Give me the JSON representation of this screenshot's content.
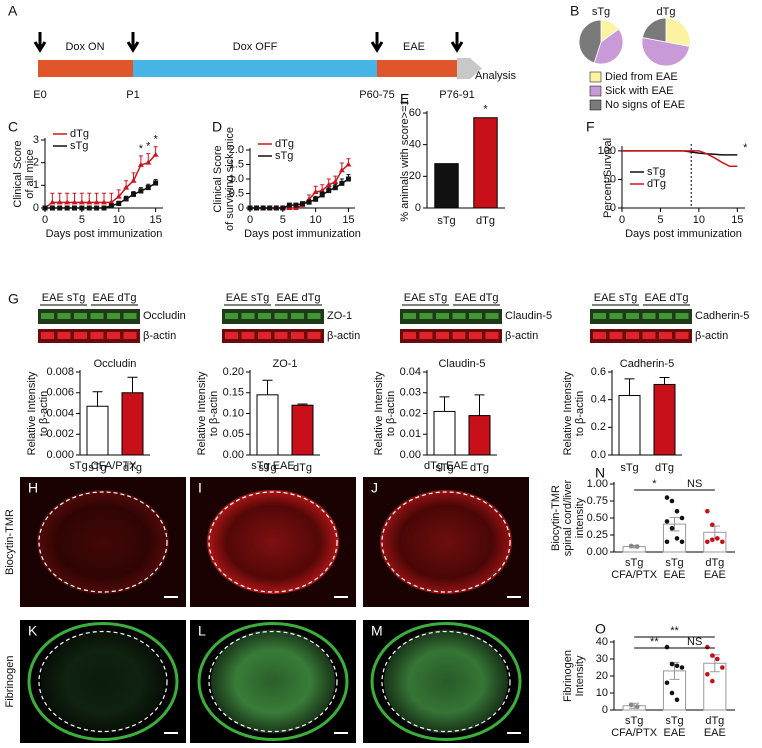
{
  "timeline": {
    "panel": "A",
    "phases": [
      "Dox ON",
      "Dox OFF",
      "EAE"
    ],
    "end": "Analysis",
    "timepoints": [
      "E0",
      "P1",
      "P60-75",
      "P76-91"
    ]
  },
  "chart_data": [
    {
      "type": "pie",
      "panel": "B",
      "categories": [
        "Died from EAE",
        "Sick with EAE",
        "No signs of EAE"
      ],
      "colors": [
        "#fbf3a2",
        "#c89ad8",
        "#7a7a7a"
      ],
      "pies": [
        {
          "name": "sTg",
          "values": [
            15,
            40,
            45
          ]
        },
        {
          "name": "dTg",
          "values": [
            28,
            50,
            22
          ]
        }
      ]
    },
    {
      "type": "line",
      "panel": "C",
      "x": [
        0,
        1,
        2,
        3,
        4,
        5,
        6,
        7,
        8,
        9,
        10,
        11,
        12,
        13,
        14,
        15
      ],
      "xlim": [
        0,
        16
      ],
      "xticks": [
        0,
        5,
        10,
        15
      ],
      "ylim": [
        0,
        3
      ],
      "yticks": [
        0,
        1,
        2,
        3
      ],
      "x_label": "Days post immunization",
      "y_label": [
        "Clinical Score",
        "of all mice"
      ],
      "legend": "upper left",
      "series": [
        {
          "name": "dTg",
          "color": "#d0141c",
          "marker": "triangle",
          "values": [
            0,
            0.25,
            0.25,
            0.25,
            0.25,
            0.25,
            0.25,
            0.25,
            0.25,
            0.25,
            0.5,
            0.9,
            1.2,
            1.9,
            2.0,
            2.35
          ],
          "errors": [
            0,
            0.4,
            0.4,
            0.4,
            0.4,
            0.4,
            0.4,
            0.4,
            0.4,
            0.4,
            0.3,
            0.3,
            0.35,
            0.4,
            0.4,
            0.35
          ]
        },
        {
          "name": "sTg",
          "color": "#111111",
          "marker": "square",
          "values": [
            0,
            0,
            0,
            0,
            0,
            0,
            0,
            0,
            0,
            0.1,
            0.2,
            0.4,
            0.6,
            0.75,
            0.9,
            1.1
          ],
          "errors": [
            0,
            0,
            0,
            0,
            0,
            0,
            0,
            0,
            0.05,
            0.08,
            0.1,
            0.12,
            0.12,
            0.15,
            0.15,
            0.15
          ]
        }
      ],
      "annotations": [
        {
          "x": 13,
          "text": "*"
        },
        {
          "x": 14,
          "text": "*"
        },
        {
          "x": 15,
          "text": "*"
        }
      ]
    },
    {
      "type": "line",
      "panel": "D",
      "x": [
        0,
        1,
        2,
        3,
        4,
        5,
        6,
        7,
        8,
        9,
        10,
        11,
        12,
        13,
        14,
        15
      ],
      "xlim": [
        0,
        16
      ],
      "xticks": [
        0,
        5,
        10,
        15
      ],
      "ylim": [
        0,
        2
      ],
      "yticks": [
        0,
        0.5,
        {
          "value": 1,
          "label": "1.0"
        },
        1.5,
        {
          "value": 2,
          "label": "2.0"
        }
      ],
      "x_label": "Days post immunization",
      "y_label": [
        "Clinical Score",
        "of surviving sick mice"
      ],
      "legend": "upper left",
      "series": [
        {
          "name": "dTg",
          "color": "#d0141c",
          "marker": "triangle",
          "values": [
            0,
            0,
            0,
            0,
            0,
            0,
            0,
            0,
            0.1,
            0.3,
            0.55,
            0.6,
            0.8,
            0.9,
            1.3,
            1.5
          ],
          "errors": [
            0,
            0,
            0,
            0,
            0,
            0,
            0,
            0,
            0.1,
            0.15,
            0.2,
            0.2,
            0.2,
            0.2,
            0.25,
            0.2
          ]
        },
        {
          "name": "sTg",
          "color": "#111111",
          "marker": "square",
          "values": [
            0,
            0,
            0,
            0,
            0,
            0,
            0.1,
            0.1,
            0.15,
            0.2,
            0.3,
            0.45,
            0.6,
            0.7,
            0.85,
            1.0
          ],
          "errors": [
            0,
            0,
            0,
            0,
            0,
            0,
            0.05,
            0.05,
            0.05,
            0.08,
            0.1,
            0.1,
            0.12,
            0.12,
            0.15,
            0.15
          ]
        }
      ],
      "annotations": []
    },
    {
      "type": "bar",
      "panel": "E",
      "categories": [
        "sTg",
        "dTg"
      ],
      "values": [
        28,
        57
      ],
      "colors": [
        "#111111",
        "#c8101a"
      ],
      "ylim": [
        0,
        60
      ],
      "yticks": [
        0,
        20,
        40,
        60
      ],
      "y_label": "% animals with score>=1",
      "annotations": [
        {
          "x": 1,
          "text": "*"
        }
      ]
    },
    {
      "type": "line",
      "panel": "F",
      "x": [
        0,
        1,
        2,
        3,
        4,
        5,
        6,
        7,
        8,
        9,
        10,
        11,
        12,
        13,
        14,
        15
      ],
      "xlim": [
        0,
        16
      ],
      "xticks": [
        0,
        5,
        10,
        15
      ],
      "ylim": [
        0,
        105
      ],
      "yticks": [
        0,
        50,
        100
      ],
      "x_label": "Days post immunization",
      "y_label": "Percent Survival",
      "legend": "center left",
      "reference_x": 9,
      "series": [
        {
          "name": "sTg",
          "color": "#111111",
          "values": [
            100,
            100,
            100,
            100,
            100,
            100,
            100,
            100,
            100,
            98,
            96,
            95,
            94,
            93,
            93,
            93
          ]
        },
        {
          "name": "dTg",
          "color": "#d0141c",
          "values": [
            100,
            100,
            100,
            100,
            100,
            100,
            100,
            100,
            100,
            100,
            100,
            95,
            88,
            80,
            73,
            73
          ]
        }
      ],
      "annotations": [
        {
          "x": 15,
          "text": "*"
        }
      ]
    },
    {
      "type": "bar",
      "title": "Occludin",
      "categories": [
        "sTg",
        "dTg"
      ],
      "values": [
        0.0047,
        0.006
      ],
      "errors": [
        0.0014,
        0.0015
      ],
      "colors": [
        "#ffffff",
        "#c8101a"
      ],
      "ylim": [
        0,
        0.008
      ],
      "yticks": [
        {
          "value": 0,
          "label": "0.000"
        },
        0.002,
        0.004,
        0.006,
        0.008
      ],
      "y_label": [
        "Relative Intensity",
        "to β-actin"
      ]
    },
    {
      "type": "bar",
      "title": "ZO-1",
      "categories": [
        "sTg",
        "dTg"
      ],
      "values": [
        0.145,
        0.12
      ],
      "errors": [
        0.035,
        0.003
      ],
      "colors": [
        "#ffffff",
        "#c8101a"
      ],
      "ylim": [
        0,
        0.2
      ],
      "yticks": [
        {
          "value": 0,
          "label": "0.00"
        },
        0.05,
        {
          "value": 0.1,
          "label": "0.10"
        },
        0.15,
        {
          "value": 0.2,
          "label": "0.20"
        }
      ],
      "y_label": [
        "Relative Intensity",
        "to β-actin"
      ]
    },
    {
      "type": "bar",
      "title": "Claudin-5",
      "categories": [
        "sTg",
        "dTg"
      ],
      "values": [
        0.021,
        0.019
      ],
      "errors": [
        0.007,
        0.01
      ],
      "colors": [
        "#ffffff",
        "#c8101a"
      ],
      "ylim": [
        0,
        0.04
      ],
      "yticks": [
        {
          "value": 0,
          "label": "0.00"
        },
        0.01,
        0.02,
        0.03,
        0.04
      ],
      "y_label": [
        "Relative Intensity",
        "to β-actin"
      ]
    },
    {
      "type": "bar",
      "title": "Cadherin-5",
      "categories": [
        "sTg",
        "dTg"
      ],
      "values": [
        0.43,
        0.51
      ],
      "errors": [
        0.12,
        0.05
      ],
      "colors": [
        "#ffffff",
        "#c8101a"
      ],
      "ylim": [
        0,
        0.6
      ],
      "yticks": [
        {
          "value": 0,
          "label": "0.0"
        },
        0.2,
        0.4,
        0.6
      ],
      "y_label": [
        "Relative Intensity",
        "to β-actin"
      ]
    },
    {
      "type": "bar-scatter",
      "panel": "N",
      "categories": [
        [
          "sTg",
          "CFA/PTX"
        ],
        [
          "sTg",
          "EAE"
        ],
        [
          "dTg",
          "EAE"
        ]
      ],
      "values": [
        0.08,
        0.41,
        0.29
      ],
      "errors": [
        0.02,
        0.1,
        0.09
      ],
      "points": [
        [
          0.09,
          0.08
        ],
        [
          0.8,
          0.75,
          0.6,
          0.5,
          0.45,
          0.35,
          0.2,
          0.15,
          0.15
        ],
        [
          0.6,
          0.4,
          0.2,
          0.15,
          0.15,
          0.18
        ]
      ],
      "point_colors": [
        "#888888",
        "#111111",
        "#c8101a"
      ],
      "ylim": [
        0,
        1
      ],
      "yticks": [
        {
          "value": 0,
          "label": "0.00"
        },
        0.25,
        {
          "value": 0.5,
          "label": "0.50"
        },
        0.75,
        {
          "value": 1,
          "label": "1.00"
        }
      ],
      "y_label": [
        "Biocytin-TMR",
        "spinal cord/liver",
        "intensity"
      ],
      "comparisons": [
        {
          "pair": [
            0,
            1
          ],
          "text": "*"
        },
        {
          "pair": [
            1,
            2
          ],
          "text": "NS"
        }
      ]
    },
    {
      "type": "bar-scatter",
      "panel": "O",
      "categories": [
        [
          "sTg",
          "CFA/PTX"
        ],
        [
          "sTg",
          "EAE"
        ],
        [
          "dTg",
          "EAE"
        ]
      ],
      "values": [
        2.5,
        23,
        27.5
      ],
      "errors": [
        1.5,
        5,
        5
      ],
      "points": [
        [
          3,
          2
        ],
        [
          37,
          27,
          26,
          25,
          16,
          10,
          6
        ],
        [
          37,
          32,
          30,
          25,
          21,
          17
        ]
      ],
      "point_colors": [
        "#888888",
        "#111111",
        "#c8101a"
      ],
      "ylim": [
        0,
        40
      ],
      "yticks": [
        0,
        10,
        20,
        30,
        40
      ],
      "y_label": [
        "Fibrinogen",
        "Intensity"
      ],
      "comparisons": [
        {
          "pair": [
            0,
            2
          ],
          "text": "**"
        },
        {
          "pair": [
            0,
            1
          ],
          "text": "**"
        },
        {
          "pair": [
            1,
            2
          ],
          "text": "NS"
        }
      ]
    }
  ],
  "blots": {
    "panel": "G",
    "items": [
      {
        "groups": [
          "EAE sTg",
          "EAE dTg"
        ],
        "protein": "Occludin",
        "control": "β-actin"
      },
      {
        "groups": [
          "EAE sTg",
          "EAE dTg"
        ],
        "protein": "ZO-1",
        "control": "β-actin"
      },
      {
        "groups": [
          "EAE sTg",
          "EAE dTg"
        ],
        "protein": "Claudin-5",
        "control": "β-actin"
      },
      {
        "groups": [
          "EAE sTg",
          "EAE dTg"
        ],
        "protein": "Cadherin-5",
        "control": "β-actin"
      }
    ]
  },
  "images": {
    "panels": [
      "H",
      "I",
      "J",
      "K",
      "L",
      "M"
    ],
    "columns": [
      "sTg CFA/PTX",
      "sTg EAE",
      "dTg EAE"
    ],
    "rows": [
      "Biocytin-TMR",
      "Fibrinogen"
    ]
  }
}
